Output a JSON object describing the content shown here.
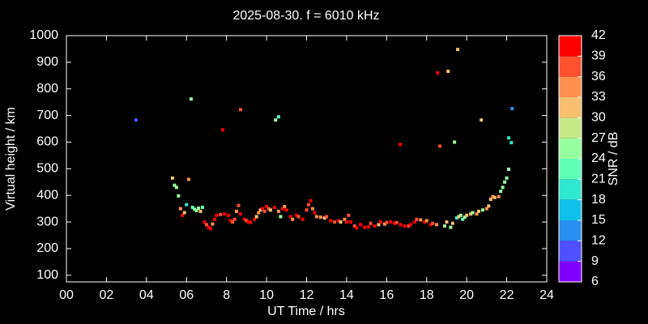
{
  "chart_data": {
    "type": "scatter",
    "title": "2025-08-30. f = 6010 kHz",
    "xlabel": "UT Time / hrs",
    "ylabel": "Virtual height / km",
    "colorbar_label": "SNR / dB",
    "xlim": [
      0,
      24
    ],
    "xticks": [
      {
        "value": 0,
        "label": "00"
      },
      {
        "value": 2,
        "label": "02"
      },
      {
        "value": 4,
        "label": "04"
      },
      {
        "value": 6,
        "label": "06"
      },
      8,
      10,
      12,
      14,
      16,
      18,
      20,
      22,
      24
    ],
    "ylim": [
      75,
      1000
    ],
    "yticks": [
      100,
      200,
      300,
      400,
      500,
      600,
      700,
      800,
      900,
      1000
    ],
    "clim": [
      6,
      42
    ],
    "cticks": [
      6,
      9,
      12,
      15,
      18,
      21,
      24,
      27,
      30,
      33,
      36,
      39,
      42
    ],
    "colors": [
      "#8000ff",
      "#5050ff",
      "#2890f0",
      "#10c0e8",
      "#30e8d0",
      "#60ffb8",
      "#98ffa0",
      "#c8e888",
      "#f8c070",
      "#ff9050",
      "#ff5030",
      "#ff0000"
    ],
    "x": [
      3.48,
      6.23,
      7.81,
      8.7,
      10.45,
      10.6,
      16.68,
      18.54,
      19.07,
      19.55,
      18.66,
      19.39,
      20.73,
      22.27,
      22.1,
      22.23,
      6.11,
      5.3,
      5.4,
      5.5,
      5.6,
      5.7,
      5.8,
      5.9,
      6.0,
      6.3,
      6.4,
      6.5,
      6.6,
      6.7,
      6.8,
      6.9,
      7.0,
      7.1,
      7.2,
      7.3,
      7.4,
      7.5,
      7.7,
      7.9,
      8.1,
      8.2,
      8.3,
      8.4,
      8.5,
      8.6,
      8.7,
      8.9,
      9.0,
      9.1,
      9.2,
      9.4,
      9.5,
      9.6,
      9.7,
      9.8,
      9.9,
      10.0,
      10.1,
      10.2,
      10.4,
      10.6,
      10.7,
      10.8,
      10.9,
      11.0,
      11.2,
      11.3,
      11.5,
      11.6,
      11.8,
      12.0,
      12.1,
      12.2,
      12.3,
      12.4,
      12.5,
      12.7,
      12.9,
      13.0,
      13.2,
      13.4,
      13.6,
      13.7,
      13.9,
      14.0,
      14.1,
      14.2,
      14.4,
      14.5,
      14.7,
      14.9,
      15.1,
      15.2,
      15.4,
      15.6,
      15.7,
      15.9,
      16.0,
      16.2,
      16.4,
      16.5,
      16.7,
      16.9,
      17.1,
      17.2,
      17.4,
      17.5,
      17.7,
      17.9,
      18.0,
      18.2,
      18.3,
      18.5,
      18.9,
      19.0,
      19.2,
      19.3,
      19.5,
      19.6,
      19.7,
      19.8,
      19.9,
      20.0,
      20.2,
      20.3,
      20.5,
      20.6,
      20.8,
      21.0,
      21.1,
      21.2,
      21.3,
      21.4,
      21.6,
      21.7,
      21.8,
      21.9,
      22.0,
      22.1
    ],
    "y": [
      683,
      762,
      646,
      722,
      683,
      695,
      591,
      860,
      866,
      948,
      585,
      600,
      683,
      726,
      616,
      598,
      460,
      465,
      438,
      430,
      398,
      350,
      325,
      335,
      365,
      355,
      348,
      343,
      352,
      340,
      355,
      300,
      290,
      280,
      275,
      292,
      310,
      325,
      328,
      330,
      325,
      305,
      300,
      310,
      340,
      362,
      330,
      310,
      305,
      300,
      298,
      310,
      320,
      335,
      345,
      350,
      340,
      358,
      350,
      345,
      355,
      340,
      320,
      350,
      358,
      345,
      320,
      310,
      325,
      320,
      310,
      345,
      365,
      380,
      350,
      335,
      320,
      318,
      315,
      320,
      305,
      300,
      305,
      300,
      310,
      300,
      325,
      300,
      285,
      278,
      290,
      280,
      282,
      295,
      285,
      290,
      300,
      292,
      298,
      300,
      295,
      298,
      290,
      285,
      285,
      290,
      300,
      310,
      308,
      300,
      305,
      290,
      295,
      290,
      285,
      300,
      280,
      295,
      315,
      320,
      325,
      310,
      318,
      325,
      330,
      335,
      330,
      340,
      345,
      350,
      360,
      385,
      395,
      392,
      395,
      415,
      430,
      450,
      465,
      498
    ],
    "snr": [
      11,
      25,
      40,
      38,
      24,
      23,
      41,
      39,
      31,
      30,
      36,
      25,
      32,
      12,
      20,
      20,
      33,
      30,
      24,
      24,
      26,
      34,
      40,
      30,
      20,
      21,
      24,
      26,
      25,
      30,
      22,
      40,
      36,
      40,
      41,
      35,
      40,
      39,
      36,
      40,
      40,
      40,
      36,
      36,
      35,
      38,
      40,
      40,
      36,
      39,
      40,
      40,
      30,
      33,
      31,
      39,
      36,
      39,
      36,
      31,
      40,
      35,
      25,
      39,
      34,
      40,
      40,
      35,
      40,
      36,
      40,
      38,
      36,
      39,
      35,
      40,
      34,
      35,
      31,
      36,
      39,
      36,
      40,
      30,
      35,
      40,
      36,
      40,
      36,
      40,
      39,
      40,
      40,
      36,
      40,
      31,
      40,
      35,
      36,
      40,
      39,
      36,
      40,
      40,
      36,
      40,
      40,
      36,
      35,
      39,
      34,
      40,
      36,
      35,
      26,
      30,
      25,
      31,
      20,
      30,
      25,
      21,
      26,
      30,
      31,
      25,
      34,
      30,
      26,
      33,
      31,
      30,
      34,
      31,
      33,
      25,
      24,
      25,
      24,
      26
    ]
  }
}
